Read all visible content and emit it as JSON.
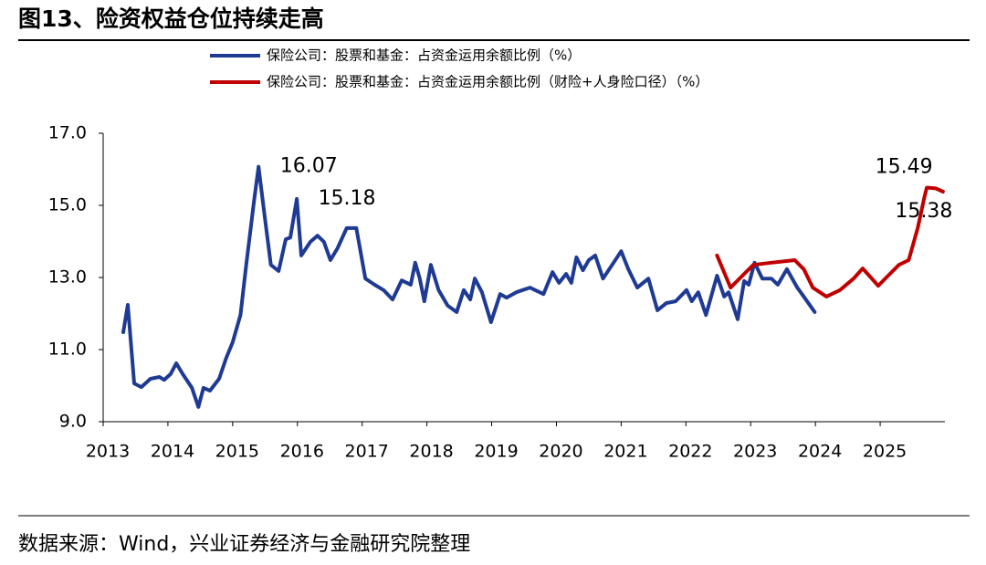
{
  "chart_data": {
    "type": "line",
    "title": "图13、险资权益仓位持续走高",
    "source": "数据来源：Wind，兴业证券经济与金融研究院整理",
    "xlim": [
      2013,
      2026
    ],
    "xticks": [
      2013,
      2014,
      2015,
      2016,
      2017,
      2018,
      2019,
      2020,
      2021,
      2022,
      2023,
      2024,
      2025
    ],
    "ylim": [
      9,
      17
    ],
    "yticks": [
      {
        "value": 9,
        "label": "9.0"
      },
      {
        "value": 11,
        "label": "11.0"
      },
      {
        "value": 13,
        "label": "13.0"
      },
      {
        "value": 15,
        "label": "15.0"
      },
      {
        "value": 17,
        "label": "17.0"
      }
    ],
    "legend": "top",
    "series": [
      {
        "name": "保险公司：股票和基金：占资金运用余额比例（%）",
        "color": "#1f3a93",
        "x": [
          2013.31,
          2013.38,
          2013.48,
          2013.59,
          2013.73,
          2013.87,
          2013.94,
          2014.04,
          2014.13,
          2014.23,
          2014.37,
          2014.47,
          2014.55,
          2014.65,
          2014.79,
          2014.9,
          2015.0,
          2015.12,
          2015.21,
          2015.33,
          2015.4,
          2015.5,
          2015.59,
          2015.71,
          2015.82,
          2015.89,
          2015.99,
          2016.06,
          2016.2,
          2016.31,
          2016.41,
          2016.51,
          2016.62,
          2016.76,
          2016.91,
          2017.05,
          2017.19,
          2017.33,
          2017.47,
          2017.61,
          2017.75,
          2017.82,
          2017.89,
          2017.96,
          2018.06,
          2018.18,
          2018.32,
          2018.46,
          2018.57,
          2018.67,
          2018.74,
          2018.85,
          2018.99,
          2019.13,
          2019.23,
          2019.38,
          2019.59,
          2019.8,
          2019.94,
          2020.04,
          2020.15,
          2020.23,
          2020.31,
          2020.41,
          2020.5,
          2020.6,
          2020.72,
          2020.86,
          2021.0,
          2021.11,
          2021.25,
          2021.42,
          2021.56,
          2021.7,
          2021.84,
          2022.01,
          2022.09,
          2022.19,
          2022.31,
          2022.48,
          2022.59,
          2022.66,
          2022.8,
          2022.9,
          2022.97,
          2023.06,
          2023.18,
          2023.32,
          2023.42,
          2023.56,
          2023.72,
          2023.82,
          2023.99
        ],
        "values": [
          11.48,
          12.24,
          10.06,
          9.96,
          10.19,
          10.24,
          10.16,
          10.32,
          10.62,
          10.32,
          9.94,
          9.41,
          9.94,
          9.86,
          10.19,
          10.77,
          11.2,
          11.96,
          13.35,
          15.13,
          16.07,
          14.62,
          13.35,
          13.18,
          14.06,
          14.11,
          15.18,
          13.61,
          13.99,
          14.16,
          13.99,
          13.48,
          13.81,
          14.37,
          14.37,
          12.97,
          12.8,
          12.65,
          12.39,
          12.92,
          12.8,
          13.41,
          12.97,
          12.34,
          13.35,
          12.65,
          12.22,
          12.04,
          12.65,
          12.39,
          12.97,
          12.59,
          11.76,
          12.54,
          12.44,
          12.59,
          12.72,
          12.54,
          13.15,
          12.85,
          13.1,
          12.85,
          13.56,
          13.2,
          13.48,
          13.61,
          12.97,
          13.35,
          13.73,
          13.23,
          12.72,
          12.97,
          12.09,
          12.29,
          12.34,
          12.65,
          12.34,
          12.59,
          11.96,
          13.05,
          12.47,
          12.59,
          11.84,
          12.9,
          12.8,
          13.41,
          12.97,
          12.97,
          12.8,
          13.23,
          12.72,
          12.47,
          12.04
        ],
        "value_labels": [
          null,
          null,
          null,
          null,
          null,
          null,
          null,
          null,
          null,
          null,
          null,
          null,
          null,
          null,
          null,
          null,
          null,
          null,
          null,
          null,
          "16.07",
          null,
          null,
          null,
          null,
          null,
          "15.18",
          null,
          null,
          null,
          null,
          null,
          null,
          null,
          null,
          null,
          null,
          null,
          null,
          null,
          null,
          null,
          null,
          null,
          null,
          null,
          null,
          null,
          null,
          null,
          null,
          null,
          null,
          null,
          null,
          null,
          null,
          null,
          null,
          null,
          null,
          null,
          null,
          null,
          null,
          null,
          null,
          null,
          null,
          null,
          null,
          null,
          null,
          null,
          null,
          null,
          null,
          null,
          null,
          null,
          null,
          null,
          null,
          null,
          null,
          null,
          null,
          null,
          null,
          null,
          null,
          null,
          null
        ]
      },
      {
        "name": "保险公司：股票和基金：占资金运用余额比例（财险+人身险口径）（%）",
        "color": "#c00000",
        "x": [
          2022.48,
          2022.69,
          2022.9,
          2023.04,
          2023.32,
          2023.68,
          2023.82,
          2023.96,
          2024.17,
          2024.38,
          2024.59,
          2024.73,
          2024.87,
          2024.97,
          2025.15,
          2025.29,
          2025.44,
          2025.58,
          2025.68,
          2025.72,
          2025.86,
          2025.97
        ],
        "values": [
          13.61,
          12.72,
          13.1,
          13.35,
          13.41,
          13.48,
          13.23,
          12.72,
          12.47,
          12.65,
          12.97,
          13.25,
          12.97,
          12.77,
          13.1,
          13.35,
          13.48,
          14.37,
          15.2,
          15.49,
          15.47,
          15.38
        ],
        "value_labels": [
          null,
          null,
          null,
          null,
          null,
          null,
          null,
          null,
          null,
          null,
          null,
          null,
          null,
          null,
          null,
          null,
          null,
          null,
          null,
          "15.49",
          null,
          "15.38"
        ]
      }
    ]
  }
}
